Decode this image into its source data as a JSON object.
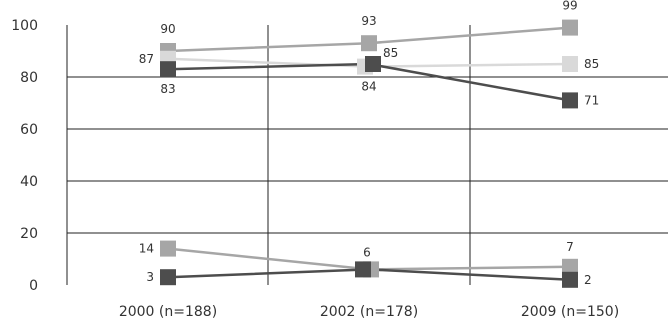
{
  "chart_data": {
    "type": "line",
    "categories": [
      "2000 (n=188)",
      "2002 (n=178)",
      "2009 (n=150)"
    ],
    "ylim": [
      0,
      100
    ],
    "yticks": [
      0,
      20,
      40,
      60,
      80,
      100
    ],
    "grid": true,
    "legend": "none",
    "series": [
      {
        "values": [
          90,
          93,
          99
        ],
        "color": "#a6a6a6",
        "labels": [
          "90",
          "93",
          "99"
        ]
      },
      {
        "values": [
          87,
          84,
          85
        ],
        "color": "#d9d9d9",
        "labels": [
          "87",
          "84",
          "85"
        ]
      },
      {
        "values": [
          83,
          85,
          71
        ],
        "color": "#4d4d4d",
        "labels": [
          "83",
          "85",
          "71"
        ]
      },
      {
        "values": [
          14,
          6,
          7
        ],
        "color": "#a6a6a6",
        "labels": [
          "14",
          "6",
          "7"
        ]
      },
      {
        "values": [
          3,
          6,
          2
        ],
        "color": "#4d4d4d",
        "labels": [
          "3",
          "",
          "2"
        ]
      }
    ]
  }
}
